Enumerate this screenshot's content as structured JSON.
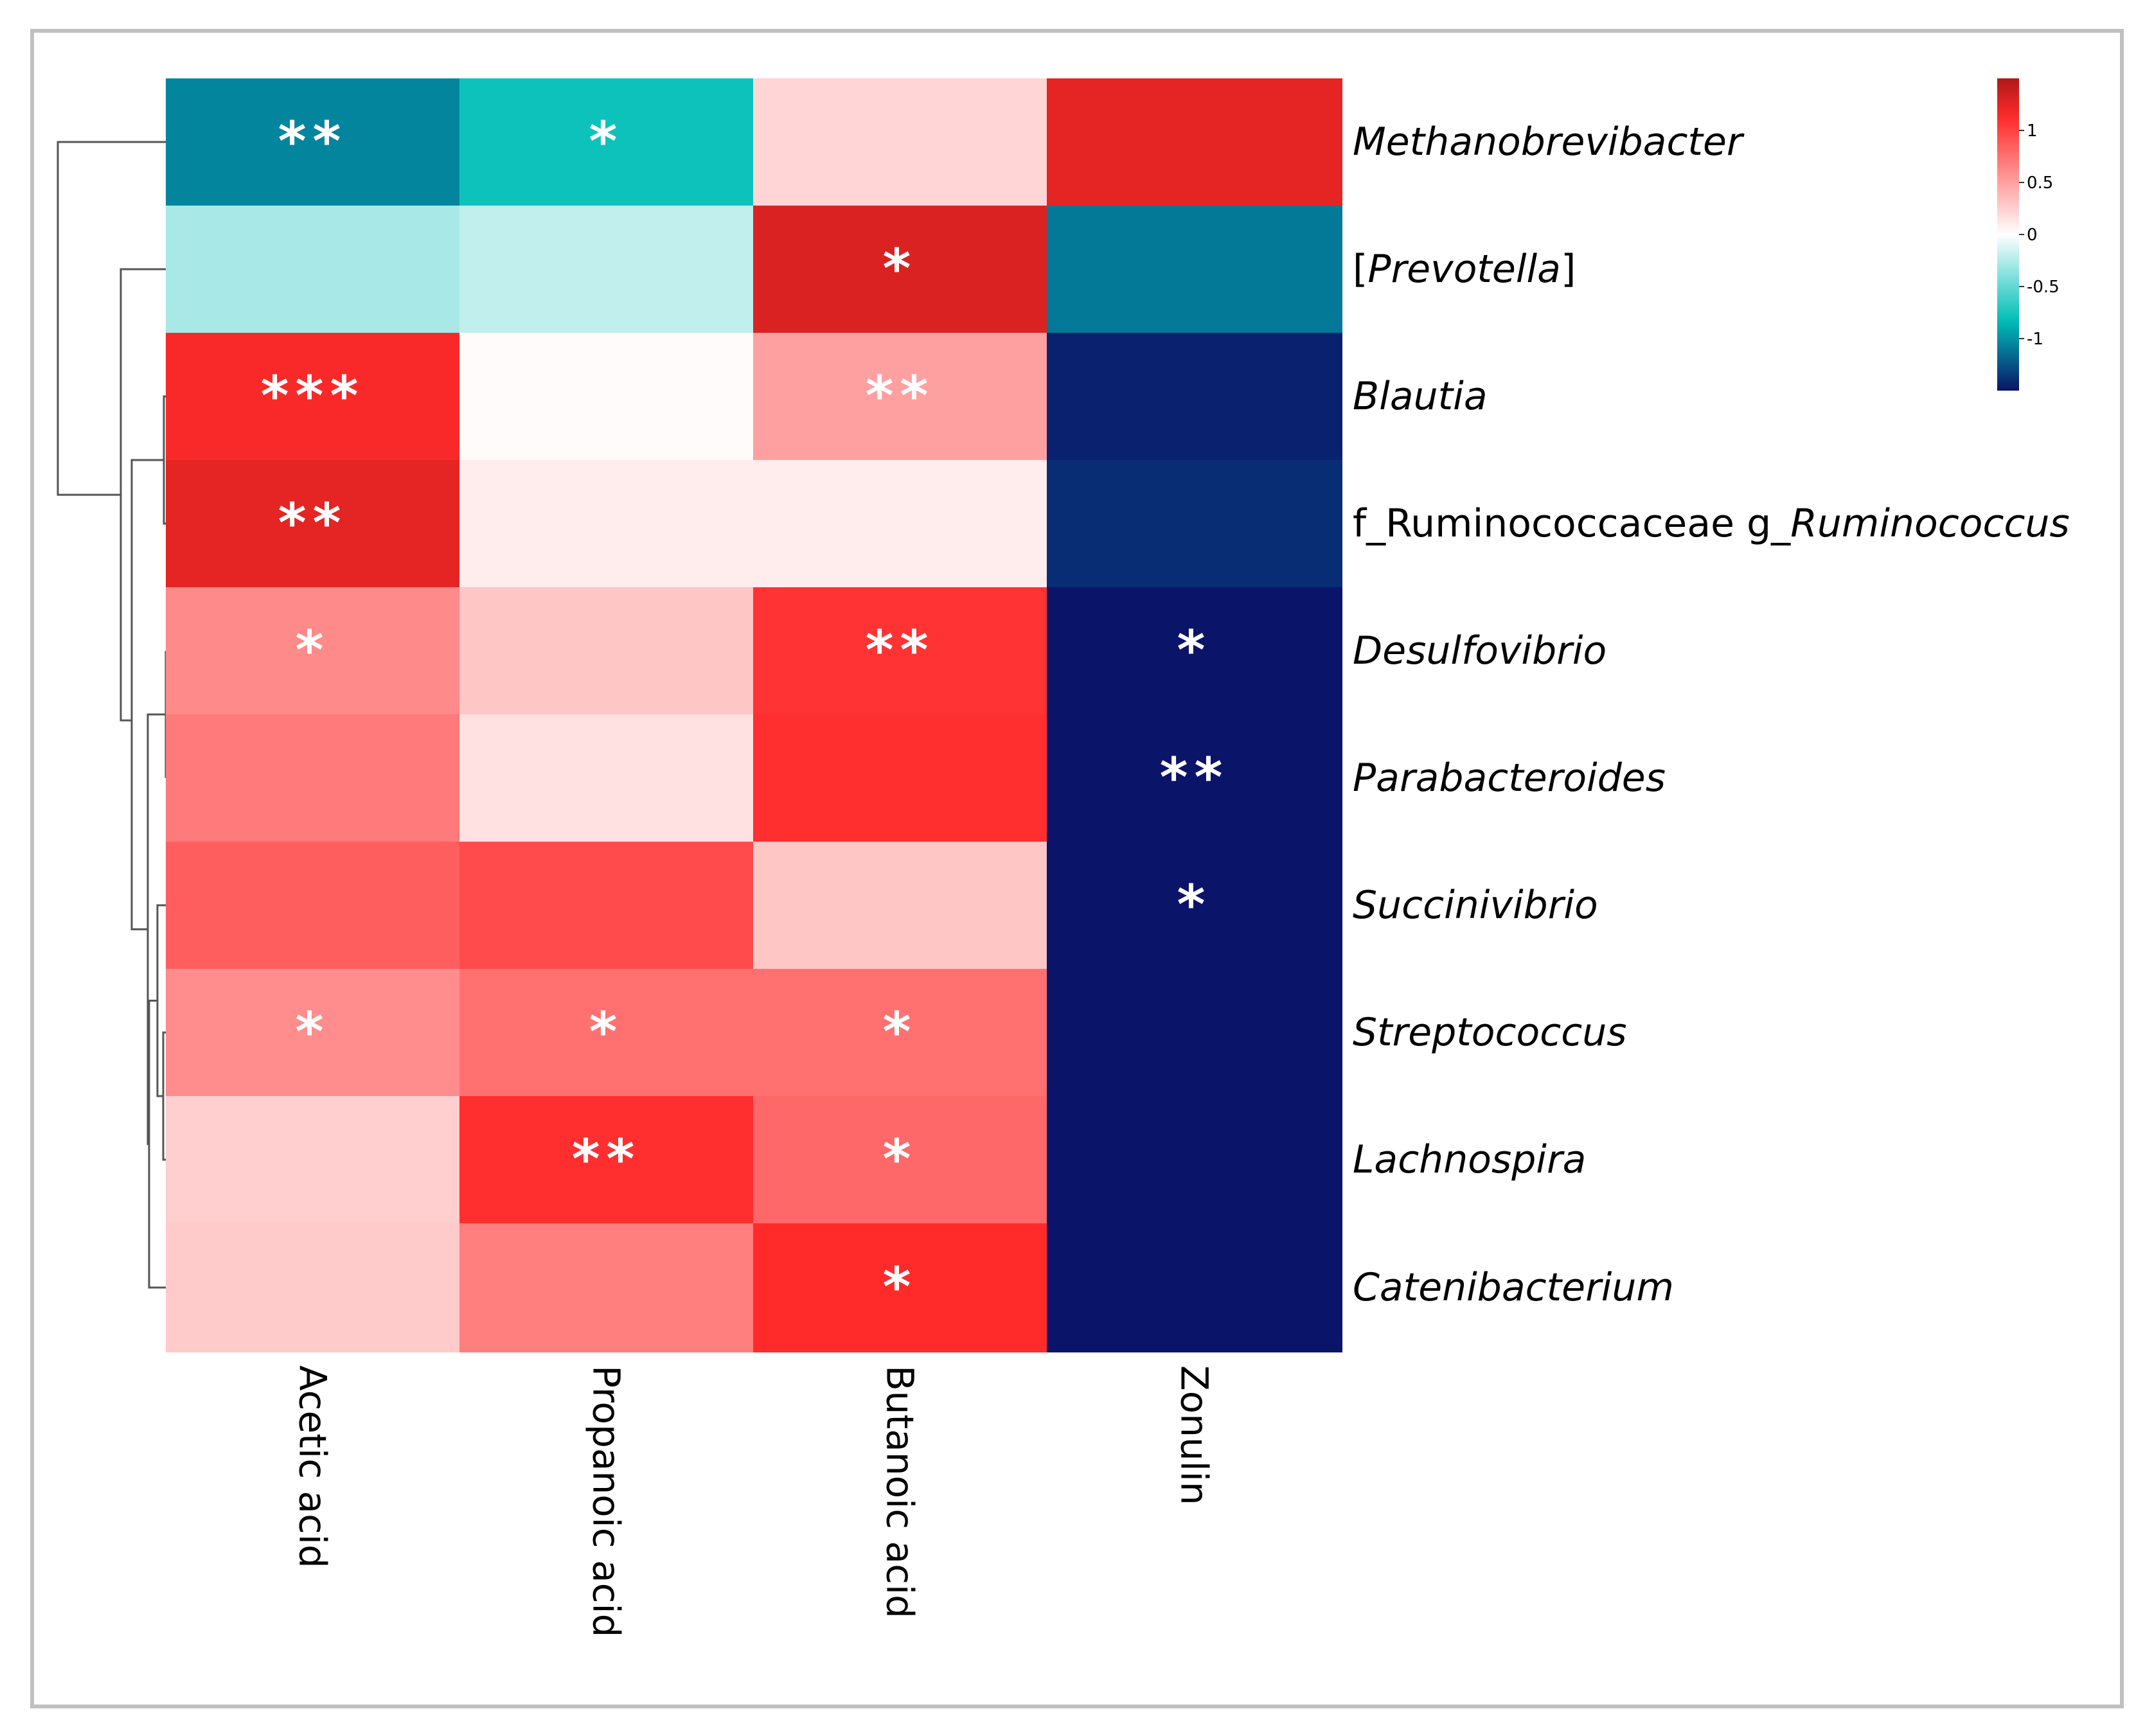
{
  "chart_data": {
    "type": "heatmap",
    "title": "",
    "xlabel": "",
    "ylabel": "",
    "columns": [
      "Acetic acid",
      "Propanoic acid",
      "Butanoic acid",
      "Zonulin"
    ],
    "rows": [
      {
        "parts": [
          {
            "text": "Methanobrevibacter",
            "italic": true
          }
        ]
      },
      {
        "parts": [
          {
            "text": "[",
            "italic": false
          },
          {
            "text": "Prevotella",
            "italic": true
          },
          {
            "text": "]",
            "italic": false
          }
        ]
      },
      {
        "parts": [
          {
            "text": "Blautia",
            "italic": true
          }
        ]
      },
      {
        "parts": [
          {
            "text": "f_Ruminococcaceae  g_",
            "italic": false
          },
          {
            "text": "Ruminococcus",
            "italic": true
          }
        ]
      },
      {
        "parts": [
          {
            "text": "Desulfovibrio",
            "italic": true
          }
        ]
      },
      {
        "parts": [
          {
            "text": "Parabacteroides",
            "italic": true
          }
        ]
      },
      {
        "parts": [
          {
            "text": "Succinivibrio",
            "italic": true
          }
        ]
      },
      {
        "parts": [
          {
            "text": "Streptococcus",
            "italic": true
          }
        ]
      },
      {
        "parts": [
          {
            "text": "Lachnospira",
            "italic": true
          }
        ]
      },
      {
        "parts": [
          {
            "text": "Catenibacterium",
            "italic": true
          }
        ]
      }
    ],
    "values": [
      [
        -1.05,
        -0.78,
        0.22,
        1.25
      ],
      [
        -0.28,
        -0.2,
        1.3,
        -1.1
      ],
      [
        1.15,
        0.02,
        0.5,
        -1.45
      ],
      [
        1.25,
        0.1,
        0.1,
        -1.4
      ],
      [
        0.62,
        0.3,
        1.08,
        -1.55
      ],
      [
        0.7,
        0.16,
        1.1,
        -1.6
      ],
      [
        0.85,
        0.95,
        0.3,
        -1.65
      ],
      [
        0.6,
        0.75,
        0.75,
        -1.7
      ],
      [
        0.26,
        1.1,
        0.8,
        -1.72
      ],
      [
        0.28,
        0.68,
        1.12,
        -1.72
      ]
    ],
    "significance": [
      [
        "**",
        "*",
        "",
        ""
      ],
      [
        "",
        "",
        "*",
        ""
      ],
      [
        "***",
        "",
        "**",
        ""
      ],
      [
        "**",
        "",
        "",
        ""
      ],
      [
        "*",
        "",
        "**",
        "*"
      ],
      [
        "",
        "",
        "",
        "**"
      ],
      [
        "",
        "",
        "",
        "*"
      ],
      [
        "*",
        "*",
        "*",
        ""
      ],
      [
        "",
        "**",
        "*",
        ""
      ],
      [
        "",
        "",
        "*",
        ""
      ]
    ],
    "colorbar": {
      "min": -1.5,
      "max": 1.5,
      "ticks": [
        {
          "value": 1,
          "label": "1"
        },
        {
          "value": 0.5,
          "label": "0.5"
        },
        {
          "value": 0,
          "label": "0"
        },
        {
          "value": -0.5,
          "label": "-0.5"
        },
        {
          "value": -1,
          "label": "-1"
        }
      ],
      "placement": "top-right"
    },
    "colors": {
      "high": "#b01818",
      "mid_high": "#ff2a2a",
      "zero": "#ffffff",
      "mid_low": "#00bfb8",
      "low": "#0a1468",
      "frame": "#c0c0c0"
    },
    "row_dendrogram": true
  }
}
